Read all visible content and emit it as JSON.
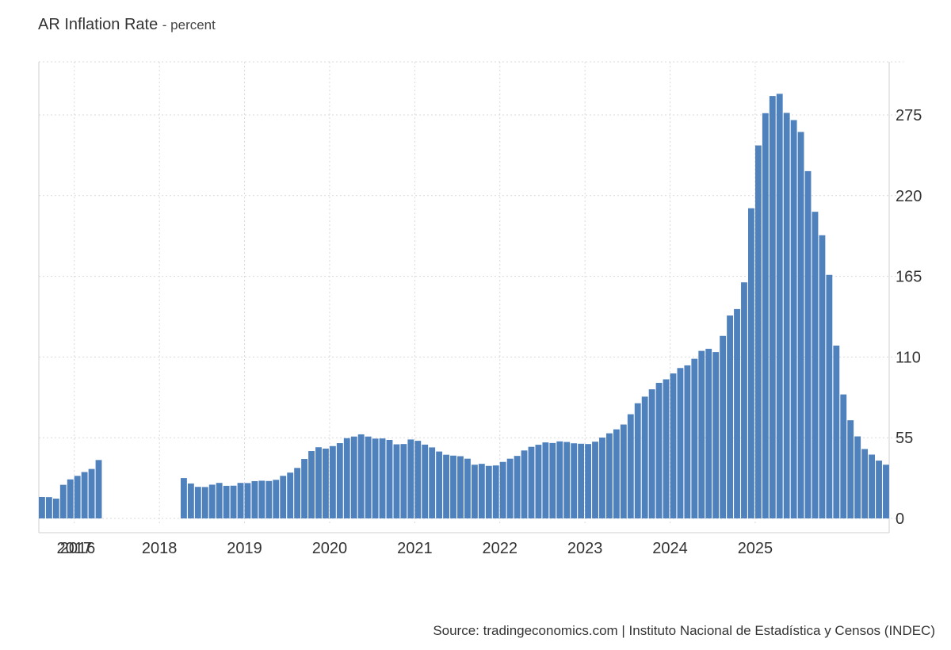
{
  "chart_data": {
    "type": "bar",
    "title": "AR Inflation Rate",
    "unit": "percent",
    "xlabel": "",
    "ylabel": "",
    "ylim": [
      0,
      300
    ],
    "yticks": [
      0,
      55,
      110,
      165,
      220,
      275
    ],
    "xticks": [
      "2016",
      "2017",
      "2018",
      "2019",
      "2020",
      "2021",
      "2022",
      "2023",
      "2024",
      "2025"
    ],
    "grid": true,
    "color": "#4f81bd",
    "start": "2016-01",
    "values": [
      null,
      null,
      null,
      null,
      null,
      null,
      null,
      14.6,
      14.5,
      13.5,
      22.9,
      26.6,
      29.0,
      31.6,
      33.7,
      39.8,
      null,
      null,
      null,
      null,
      null,
      null,
      null,
      null,
      null,
      null,
      null,
      27.5,
      23.8,
      21.5,
      21.4,
      23.0,
      24.2,
      22.2,
      22.3,
      24.2,
      24.1,
      25.4,
      25.7,
      25.5,
      26.3,
      29.0,
      31.2,
      34.4,
      40.5,
      45.9,
      48.5,
      47.6,
      49.3,
      51.3,
      54.7,
      55.8,
      57.3,
      55.8,
      54.4,
      54.5,
      53.5,
      50.5,
      50.7,
      53.8,
      52.9,
      50.3,
      48.4,
      45.6,
      43.4,
      42.8,
      42.4,
      40.7,
      36.6,
      37.2,
      35.8,
      36.1,
      38.5,
      40.7,
      42.6,
      46.3,
      48.8,
      50.2,
      51.8,
      51.4,
      52.5,
      52.1,
      51.2,
      50.9,
      50.7,
      52.3,
      55.1,
      58.0,
      60.7,
      64.0,
      71.0,
      78.5,
      83.0,
      88.0,
      92.4,
      94.8,
      98.8,
      102.5,
      104.3,
      108.8,
      114.2,
      115.6,
      113.4,
      124.4,
      138.3,
      142.7,
      160.9,
      211.4,
      254.2,
      276.2,
      287.9,
      289.4,
      276.4,
      271.5,
      263.4,
      236.7,
      209.0,
      193.0,
      166.0,
      117.8,
      84.5,
      66.9,
      55.9,
      47.3,
      43.5,
      39.4,
      36.6
    ]
  },
  "source": "Source: tradingeconomics.com | Instituto Nacional de Estadística y Censos (INDEC)"
}
